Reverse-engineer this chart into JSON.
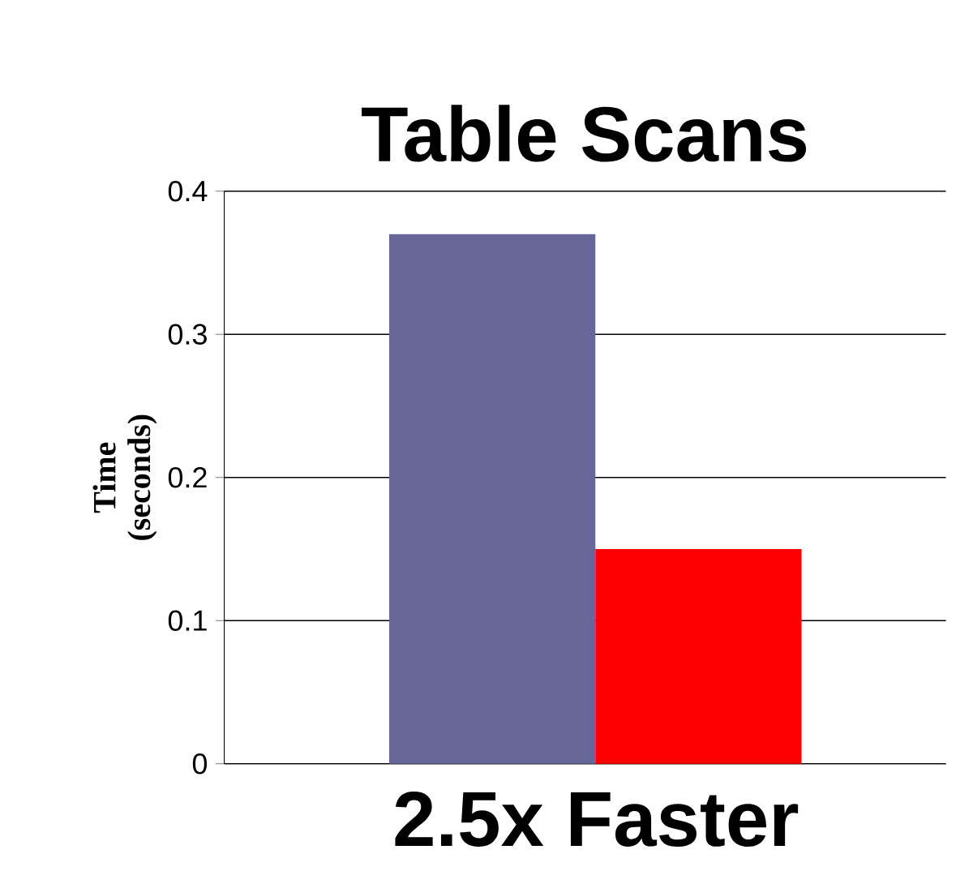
{
  "chart_data": {
    "type": "bar",
    "title": "Table Scans",
    "ylabel": "Time (seconds)",
    "categories": [
      null,
      null
    ],
    "values": [
      0.37,
      0.15
    ],
    "colors": [
      "#666699",
      "#ff0000"
    ],
    "ylim": [
      0,
      0.4
    ],
    "yticks": [
      0,
      0.1,
      0.2,
      0.3,
      0.4
    ],
    "grid": "y",
    "annotations": [
      "2.5x Faster"
    ]
  }
}
